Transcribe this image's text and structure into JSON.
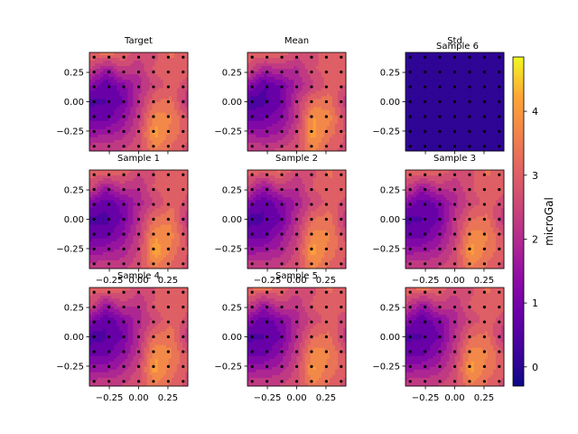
{
  "chart_data": [
    {
      "type": "heatmap",
      "title": "Target",
      "xticks": [
        "−0.25",
        "0.00",
        "0.25"
      ],
      "yticks": [
        "0.25",
        "0.00",
        "−0.25"
      ],
      "show_xticks": false,
      "extent": [
        -0.42,
        0.42
      ],
      "points_per_side": 7,
      "values": [
        [
          3.1,
          3.4,
          3.2,
          2.6,
          2.7,
          3.3,
          2.9
        ],
        [
          2.6,
          1.6,
          2.4,
          2.2,
          2.9,
          3.1,
          3.0
        ],
        [
          1.3,
          0.7,
          1.2,
          1.9,
          2.6,
          3.0,
          2.6
        ],
        [
          0.5,
          0.6,
          0.9,
          2.1,
          3.2,
          3.3,
          2.1
        ],
        [
          0.9,
          0.8,
          1.4,
          2.3,
          3.8,
          3.6,
          2.8
        ],
        [
          1.6,
          1.7,
          1.9,
          2.6,
          4.1,
          3.4,
          2.9
        ],
        [
          2.4,
          2.5,
          2.5,
          2.7,
          3.5,
          3.1,
          2.7
        ]
      ]
    },
    {
      "type": "heatmap",
      "title": "Mean",
      "xticks": [
        "−0.25",
        "0.00",
        "0.25"
      ],
      "yticks": [
        "0.25",
        "0.00",
        "−0.25"
      ],
      "show_xticks": false,
      "extent": [
        -0.42,
        0.42
      ],
      "points_per_side": 7,
      "values": [
        [
          3.0,
          3.3,
          3.1,
          2.7,
          2.6,
          3.2,
          3.0
        ],
        [
          2.8,
          1.8,
          2.2,
          2.0,
          2.8,
          3.0,
          3.0
        ],
        [
          1.4,
          0.6,
          1.0,
          1.8,
          2.4,
          3.0,
          2.8
        ],
        [
          0.4,
          0.5,
          0.9,
          2.2,
          3.3,
          3.4,
          2.2
        ],
        [
          0.8,
          0.9,
          1.3,
          2.2,
          4.0,
          3.7,
          2.6
        ],
        [
          1.7,
          1.6,
          1.8,
          2.5,
          4.1,
          3.3,
          2.8
        ],
        [
          2.5,
          2.4,
          2.6,
          2.8,
          3.6,
          3.0,
          2.6
        ]
      ]
    },
    {
      "type": "heatmap",
      "title": "Std",
      "overlay_title": "Sample 6",
      "xticks": [
        "−0.25",
        "0.00",
        "0.25"
      ],
      "yticks": [
        "0.25",
        "0.00",
        "−0.25"
      ],
      "show_xticks": false,
      "extent": [
        -0.42,
        0.42
      ],
      "points_per_side": 7,
      "values": [
        [
          0.02,
          0.02,
          0.02,
          0.02,
          0.02,
          0.02,
          0.02
        ],
        [
          0.02,
          0.02,
          0.02,
          0.02,
          0.02,
          0.02,
          0.02
        ],
        [
          0.02,
          0.02,
          0.02,
          0.02,
          0.02,
          0.02,
          0.02
        ],
        [
          0.02,
          0.02,
          0.02,
          0.02,
          0.02,
          0.02,
          0.02
        ],
        [
          0.02,
          0.02,
          0.02,
          0.02,
          0.02,
          0.02,
          0.02
        ],
        [
          0.02,
          0.02,
          0.02,
          0.02,
          0.02,
          0.02,
          0.02
        ],
        [
          0.02,
          0.02,
          0.02,
          0.02,
          0.02,
          0.02,
          0.02
        ]
      ]
    },
    {
      "type": "heatmap",
      "title": "Sample 1",
      "xticks": [
        "−0.25",
        "0.00",
        "0.25"
      ],
      "yticks": [
        "0.25",
        "0.00",
        "−0.25"
      ],
      "show_xticks": true,
      "extent": [
        -0.42,
        0.42
      ],
      "points_per_side": 7,
      "values": [
        [
          3.1,
          3.3,
          3.2,
          2.6,
          2.8,
          3.2,
          2.9
        ],
        [
          2.7,
          1.7,
          2.3,
          2.1,
          2.9,
          3.1,
          2.9
        ],
        [
          1.2,
          0.7,
          1.1,
          1.9,
          2.5,
          3.1,
          2.7
        ],
        [
          0.5,
          0.5,
          1.0,
          2.1,
          3.3,
          3.5,
          2.0
        ],
        [
          0.8,
          0.8,
          1.4,
          2.3,
          3.9,
          3.7,
          2.7
        ],
        [
          1.5,
          1.7,
          1.9,
          2.5,
          4.2,
          3.4,
          2.8
        ],
        [
          2.4,
          2.5,
          2.4,
          2.7,
          3.5,
          3.1,
          2.7
        ]
      ]
    },
    {
      "type": "heatmap",
      "title": "Sample 2",
      "xticks": [
        "−0.25",
        "0.00",
        "0.25"
      ],
      "yticks": [
        "0.25",
        "0.00",
        "−0.25"
      ],
      "show_xticks": true,
      "extent": [
        -0.42,
        0.42
      ],
      "points_per_side": 7,
      "values": [
        [
          3.0,
          3.2,
          3.3,
          2.6,
          2.7,
          3.3,
          2.9
        ],
        [
          2.5,
          1.6,
          2.4,
          2.1,
          2.9,
          3.1,
          3.1
        ],
        [
          1.3,
          0.6,
          1.2,
          1.8,
          2.5,
          3.0,
          2.7
        ],
        [
          0.4,
          0.6,
          0.9,
          2.1,
          3.2,
          3.4,
          2.1
        ],
        [
          0.9,
          0.8,
          1.5,
          2.3,
          3.8,
          3.6,
          2.7
        ],
        [
          1.6,
          1.7,
          1.9,
          2.6,
          4.1,
          3.4,
          2.9
        ],
        [
          2.5,
          2.5,
          2.5,
          2.7,
          3.6,
          3.1,
          2.6
        ]
      ]
    },
    {
      "type": "heatmap",
      "title": "Sample 3",
      "xticks": [
        "−0.25",
        "0.00",
        "0.25"
      ],
      "yticks": [
        "0.25",
        "0.00",
        "−0.25"
      ],
      "show_xticks": true,
      "extent": [
        -0.42,
        0.42
      ],
      "points_per_side": 7,
      "values": [
        [
          3.1,
          3.3,
          3.2,
          2.7,
          2.7,
          3.3,
          2.9
        ],
        [
          2.6,
          1.7,
          2.3,
          2.2,
          2.8,
          3.1,
          3.0
        ],
        [
          1.3,
          0.7,
          1.1,
          1.9,
          2.6,
          3.0,
          2.6
        ],
        [
          0.5,
          0.6,
          0.9,
          2.2,
          3.2,
          3.3,
          2.1
        ],
        [
          0.9,
          0.8,
          1.4,
          2.3,
          3.8,
          3.6,
          2.8
        ],
        [
          1.6,
          1.7,
          1.9,
          2.6,
          4.1,
          3.4,
          2.9
        ],
        [
          2.4,
          2.5,
          2.5,
          2.7,
          3.5,
          3.1,
          2.7
        ]
      ]
    },
    {
      "type": "heatmap",
      "title": "Sample 4",
      "xticks": [
        "−0.25",
        "0.00",
        "0.25"
      ],
      "yticks": [
        "0.25",
        "0.00",
        "−0.25"
      ],
      "show_xticks": true,
      "extent": [
        -0.42,
        0.42
      ],
      "points_per_side": 7,
      "values": [
        [
          3.0,
          3.3,
          3.1,
          2.6,
          2.8,
          3.2,
          3.0
        ],
        [
          2.7,
          1.6,
          2.4,
          2.1,
          2.9,
          3.1,
          2.9
        ],
        [
          1.3,
          0.6,
          1.2,
          1.9,
          2.6,
          3.1,
          2.7
        ],
        [
          0.4,
          0.6,
          0.9,
          2.1,
          3.3,
          3.4,
          2.1
        ],
        [
          0.9,
          0.8,
          1.4,
          2.2,
          3.9,
          3.6,
          2.8
        ],
        [
          1.6,
          1.6,
          1.9,
          2.6,
          4.1,
          3.4,
          2.8
        ],
        [
          2.4,
          2.5,
          2.5,
          2.8,
          3.5,
          3.1,
          2.7
        ]
      ]
    },
    {
      "type": "heatmap",
      "title": "Sample 5",
      "xticks": [
        "−0.25",
        "0.00",
        "0.25"
      ],
      "yticks": [
        "0.25",
        "0.00",
        "−0.25"
      ],
      "show_xticks": true,
      "extent": [
        -0.42,
        0.42
      ],
      "points_per_side": 7,
      "values": [
        [
          3.2,
          3.4,
          3.2,
          2.6,
          2.7,
          3.3,
          2.9
        ],
        [
          2.6,
          1.7,
          2.4,
          2.2,
          2.9,
          3.0,
          3.0
        ],
        [
          1.3,
          0.7,
          1.2,
          1.9,
          2.6,
          3.0,
          2.6
        ],
        [
          0.5,
          0.6,
          0.9,
          2.1,
          3.2,
          3.3,
          2.2
        ],
        [
          0.9,
          0.8,
          1.4,
          2.3,
          3.8,
          3.6,
          2.8
        ],
        [
          1.6,
          1.7,
          1.9,
          2.6,
          4.0,
          3.4,
          2.9
        ],
        [
          2.4,
          2.5,
          2.5,
          2.7,
          3.5,
          3.1,
          2.7
        ]
      ]
    },
    {
      "type": "heatmap",
      "title": "",
      "xticks": [
        "−0.25",
        "0.00",
        "0.25"
      ],
      "yticks": [
        "0.25",
        "0.00",
        "−0.25"
      ],
      "show_xticks": true,
      "extent": [
        -0.42,
        0.42
      ],
      "points_per_side": 7,
      "values": [
        [
          3.1,
          3.4,
          3.2,
          2.6,
          2.7,
          3.3,
          2.9
        ],
        [
          2.6,
          1.6,
          2.4,
          2.2,
          2.9,
          3.1,
          3.0
        ],
        [
          1.3,
          0.7,
          1.2,
          1.9,
          2.6,
          3.0,
          2.6
        ],
        [
          0.5,
          0.6,
          0.9,
          2.1,
          3.2,
          3.3,
          2.1
        ],
        [
          0.9,
          0.8,
          1.4,
          2.3,
          3.8,
          3.6,
          2.8
        ],
        [
          1.6,
          1.7,
          1.9,
          2.6,
          4.1,
          3.4,
          2.9
        ],
        [
          2.4,
          2.5,
          2.5,
          2.7,
          3.5,
          3.1,
          2.7
        ]
      ]
    }
  ],
  "colorbar": {
    "label": "microGal",
    "ticks": [
      "0",
      "1",
      "2",
      "3",
      "4"
    ],
    "tick_values": [
      0,
      1,
      2,
      3,
      4
    ],
    "range": [
      -0.3,
      4.85
    ],
    "colormap": "plasma"
  }
}
